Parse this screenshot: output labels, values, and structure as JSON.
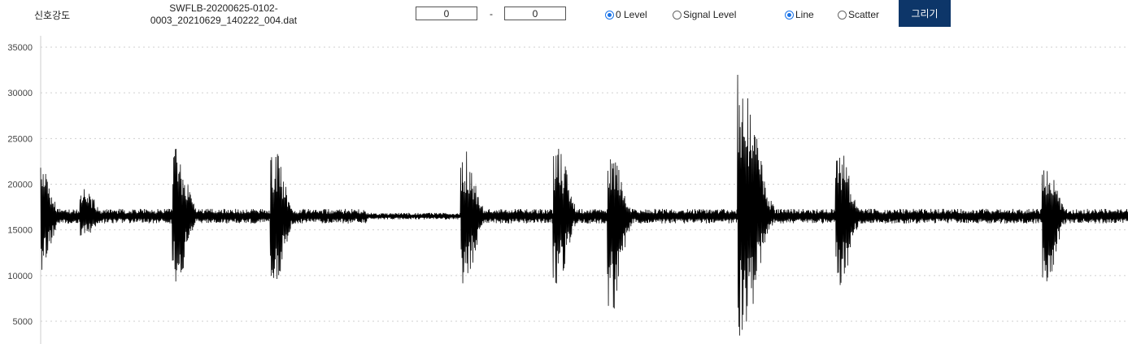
{
  "toolbar": {
    "title": "신호강도",
    "file_line1": "SWFLB-20200625-0102-",
    "file_line2": "0003_20210629_140222_004.dat",
    "range_from": "0",
    "range_separator": "-",
    "range_to": "0",
    "level_options": [
      {
        "label": "0 Level",
        "checked": true
      },
      {
        "label": "Signal Level",
        "checked": false
      }
    ],
    "plot_options": [
      {
        "label": "Line",
        "checked": true
      },
      {
        "label": "Scatter",
        "checked": false
      }
    ],
    "draw_button": "그리기",
    "button_color": "#0d3669"
  },
  "chart_data": {
    "type": "line",
    "title": "",
    "xlabel": "",
    "ylabel": "",
    "ylim": [
      2800,
      35000
    ],
    "y_ticks": [
      "35000",
      "30000",
      "25000",
      "20000",
      "15000",
      "10000",
      "5000"
    ],
    "grid": true,
    "line_color": "#000000",
    "baseline": 16500,
    "noise_amplitude": 800,
    "bursts": [
      {
        "center": 0.0,
        "peak_high": 22000,
        "peak_low": 10500
      },
      {
        "center": 0.04,
        "peak_high": 20000,
        "peak_low": 14000
      },
      {
        "center": 0.125,
        "peak_high": 24300,
        "peak_low": 9000
      },
      {
        "center": 0.215,
        "peak_high": 23700,
        "peak_low": 9000
      },
      {
        "center": 0.39,
        "peak_high": 23800,
        "peak_low": 8800
      },
      {
        "center": 0.475,
        "peak_high": 24800,
        "peak_low": 8800
      },
      {
        "center": 0.525,
        "peak_high": 24000,
        "peak_low": 5800
      },
      {
        "center": 0.645,
        "peak_high": 32800,
        "peak_low": 2900
      },
      {
        "center": 0.735,
        "peak_high": 24000,
        "peak_low": 8200
      },
      {
        "center": 0.925,
        "peak_high": 22300,
        "peak_low": 9000
      }
    ]
  }
}
